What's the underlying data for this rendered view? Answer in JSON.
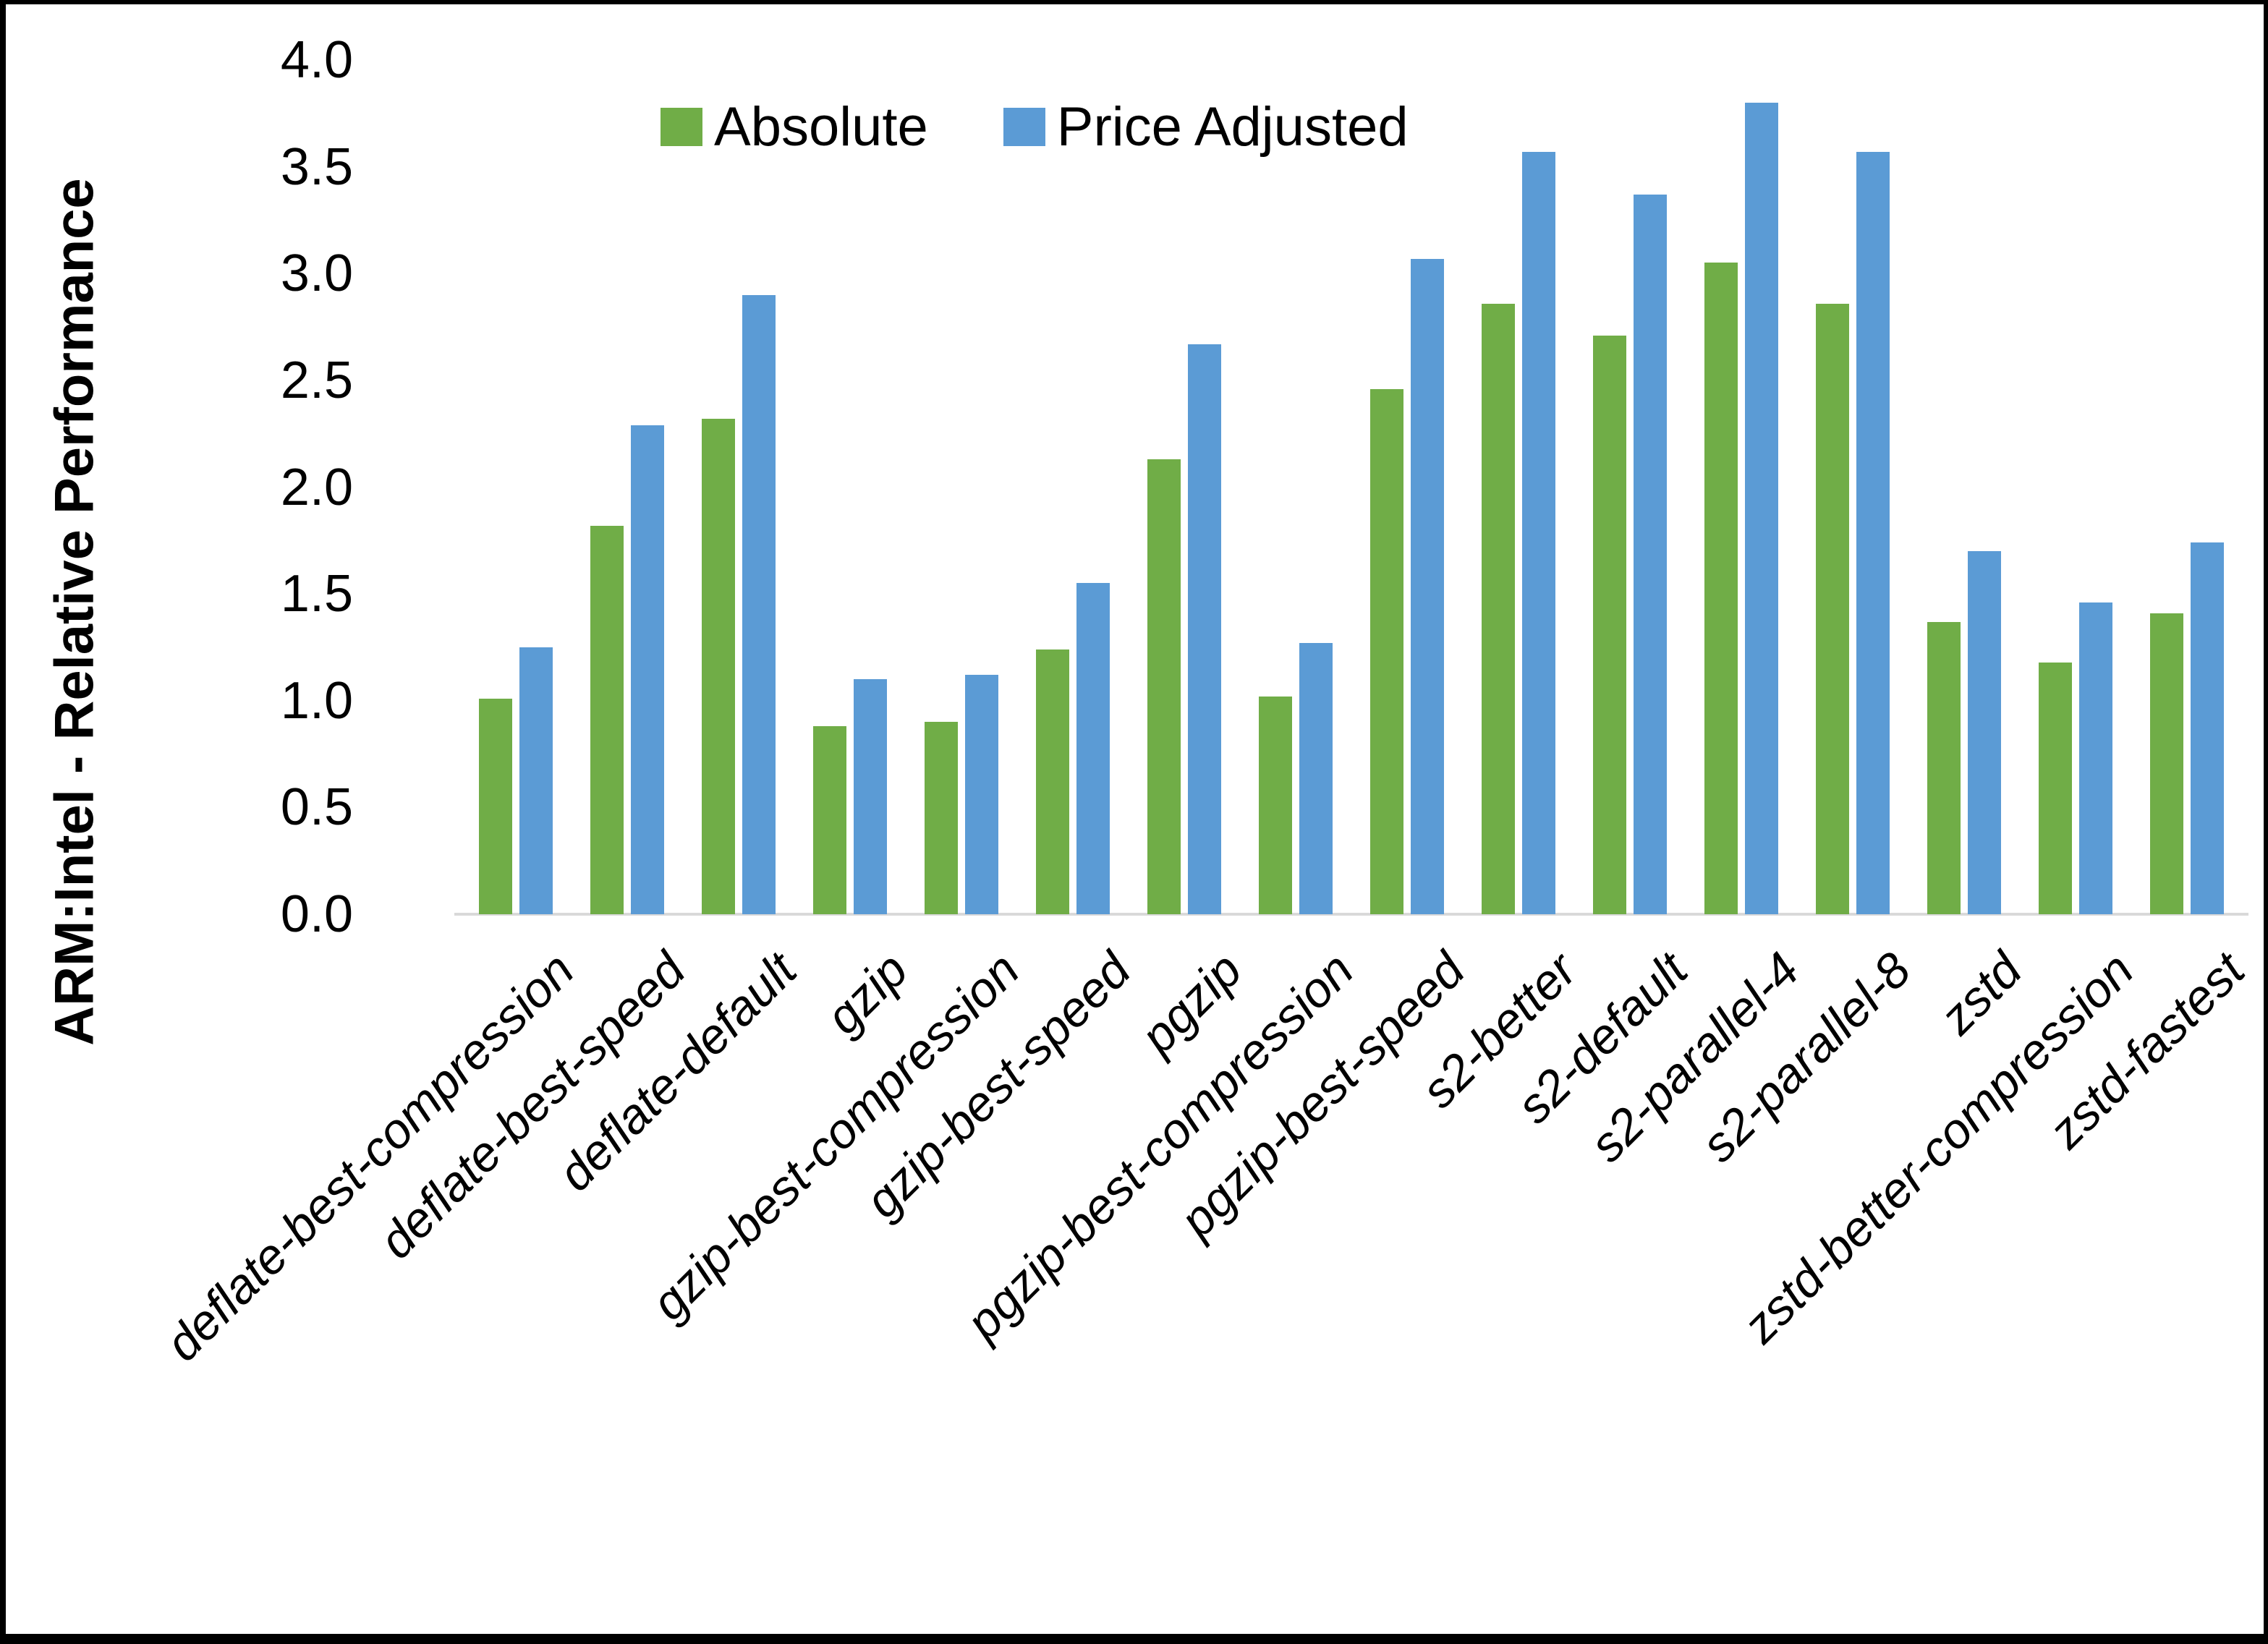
{
  "chart_data": {
    "type": "bar",
    "title": "",
    "xlabel": "",
    "ylabel": "ARM:Intel - Relative Performance",
    "ylim": [
      0.0,
      4.0
    ],
    "ytick_step": 0.5,
    "grid": false,
    "legend_position": "top-center",
    "background": "#ffffff",
    "axis_line_color": "#d9d9d9",
    "categories": [
      "deflate-best-compression",
      "deflate-best-speed",
      "deflate-default",
      "gzip",
      "gzip-best-compression",
      "gzip-best-speed",
      "pgzip",
      "pgzip-best-compression",
      "pgzip-best-speed",
      "s2-better",
      "s2-default",
      "s2-parallel-4",
      "s2-parallel-8",
      "zstd",
      "zstd-better-compression",
      "zstd-fastest"
    ],
    "series": [
      {
        "name": "Absolute",
        "color": "#70AD47",
        "values": [
          1.01,
          1.82,
          2.32,
          0.88,
          0.9,
          1.24,
          2.13,
          1.02,
          2.46,
          2.86,
          2.71,
          3.05,
          2.86,
          1.37,
          1.18,
          1.41
        ]
      },
      {
        "name": "Price Adjusted",
        "color": "#5B9BD5",
        "values": [
          1.25,
          2.29,
          2.9,
          1.1,
          1.12,
          1.55,
          2.67,
          1.27,
          3.07,
          3.57,
          3.37,
          3.8,
          3.57,
          1.7,
          1.46,
          1.74
        ]
      }
    ]
  }
}
